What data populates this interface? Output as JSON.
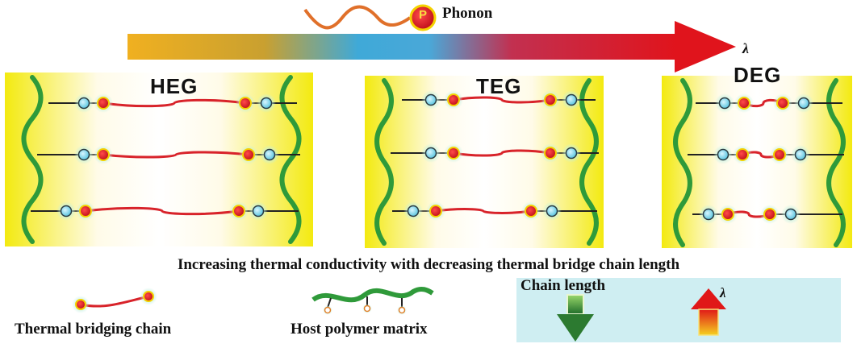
{
  "phonon": {
    "label": "Phonon",
    "badge": "P"
  },
  "lambda_symbol": "λ",
  "panels": [
    {
      "title": "HEG"
    },
    {
      "title": "TEG"
    },
    {
      "title": "DEG"
    }
  ],
  "caption": "Increasing thermal conductivity with decreasing thermal bridge chain length",
  "legend": {
    "bridging_chain": "Thermal bridging chain",
    "host_matrix": "Host polymer matrix",
    "chain_length": "Chain length",
    "lambda": "λ"
  },
  "colors": {
    "panel_yellow": "#f5ee1e",
    "polymer_green": "#2f9a3a",
    "chain_red": "#d8232a",
    "node_blue": "#7fd6e8",
    "legend_bg": "#cfeef2"
  }
}
